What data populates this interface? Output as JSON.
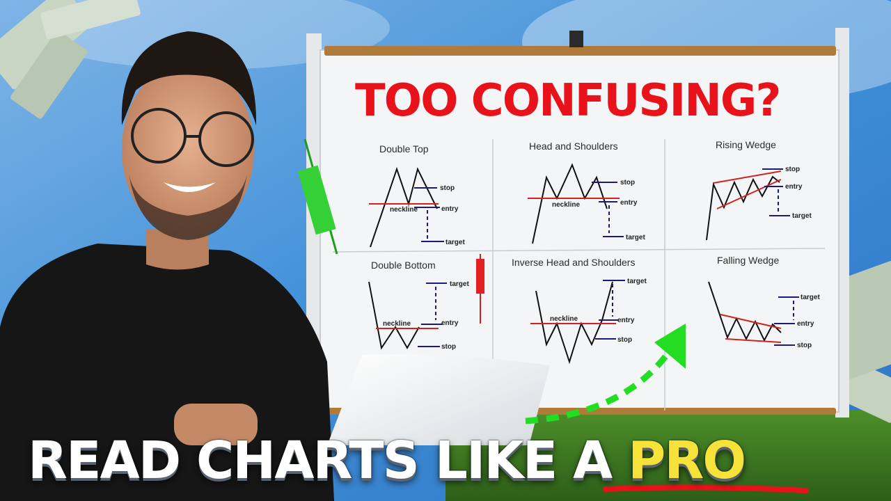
{
  "board": {
    "title": "TOO CONFUSING?",
    "panels": [
      {
        "title": "Double Top",
        "labels": {
          "stop": "stop",
          "neckline": "neckline",
          "entry": "entry",
          "target": "target"
        }
      },
      {
        "title": "Head and Shoulders",
        "labels": {
          "stop": "stop",
          "neckline": "neckline",
          "entry": "entry",
          "target": "target"
        }
      },
      {
        "title": "Rising Wedge",
        "labels": {
          "stop": "stop",
          "entry": "entry",
          "target": "target"
        }
      },
      {
        "title": "Double Bottom",
        "labels": {
          "target": "target",
          "neckline": "neckline",
          "entry": "entry",
          "stop": "stop"
        }
      },
      {
        "title": "Inverse Head and Shoulders",
        "labels": {
          "target": "target",
          "neckline": "neckline",
          "entry": "entry",
          "stop": "stop"
        }
      },
      {
        "title": "Falling Wedge",
        "labels": {
          "target": "target",
          "entry": "entry",
          "stop": "stop"
        }
      }
    ]
  },
  "headline": {
    "part1": "READ CHARTS LIKE A ",
    "part2": "PRO"
  },
  "colors": {
    "title_red": "#e8121a",
    "pro_yellow": "#f7e23a",
    "arrow_green": "#22dd22",
    "underline_red": "#e8121a",
    "shirt": "#161616"
  }
}
